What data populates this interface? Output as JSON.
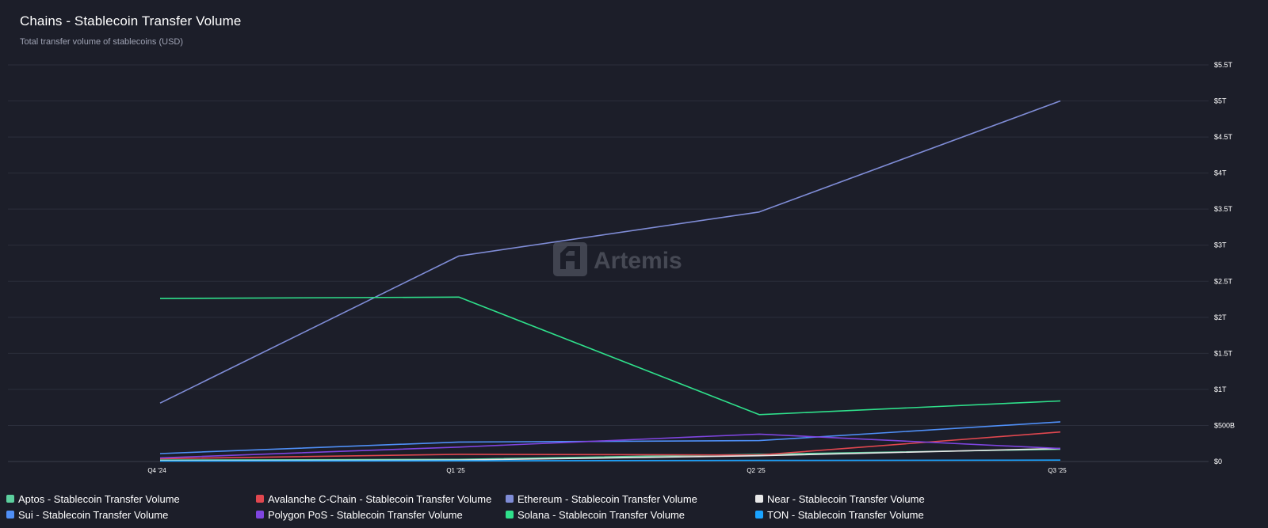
{
  "title": "Chains - Stablecoin Transfer Volume",
  "subtitle": "Total transfer volume of stablecoins (USD)",
  "watermark": "Artemis",
  "colors": {
    "background": "#1c1e29",
    "grid": "#2b2e3b",
    "axis_text": "#ffffff"
  },
  "chart_data": {
    "type": "line",
    "x": [
      "Q4 '24",
      "Q1 '25",
      "Q2 '25",
      "Q3 '25"
    ],
    "ylim": [
      0,
      5.5
    ],
    "y_unit": "trillion USD",
    "y_ticks": [
      {
        "value": 0,
        "label": "$0"
      },
      {
        "value": 0.5,
        "label": "$500B"
      },
      {
        "value": 1,
        "label": "$1T"
      },
      {
        "value": 1.5,
        "label": "$1.5T"
      },
      {
        "value": 2,
        "label": "$2T"
      },
      {
        "value": 2.5,
        "label": "$2.5T"
      },
      {
        "value": 3,
        "label": "$3T"
      },
      {
        "value": 3.5,
        "label": "$3.5T"
      },
      {
        "value": 4,
        "label": "$4T"
      },
      {
        "value": 4.5,
        "label": "$4.5T"
      },
      {
        "value": 5,
        "label": "$5T"
      },
      {
        "value": 5.5,
        "label": "$5.5T"
      }
    ],
    "grid": true,
    "legend_position": "bottom",
    "series": [
      {
        "name": "Aptos - Stablecoin Transfer Volume",
        "color": "#5ccf9e",
        "values": [
          0.02,
          0.03,
          0.1,
          0.17
        ]
      },
      {
        "name": "Avalanche C-Chain - Stablecoin Transfer Volume",
        "color": "#e0474f",
        "values": [
          0.04,
          0.1,
          0.09,
          0.41
        ]
      },
      {
        "name": "Ethereum - Stablecoin Transfer Volume",
        "color": "#7f8cd6",
        "values": [
          0.81,
          2.85,
          3.46,
          5.0
        ]
      },
      {
        "name": "Near - Stablecoin Transfer Volume",
        "color": "#e8e8e8",
        "values": [
          0.01,
          0.02,
          0.08,
          0.18
        ]
      },
      {
        "name": "Sui - Stablecoin Transfer Volume",
        "color": "#4f8ff7",
        "values": [
          0.11,
          0.27,
          0.29,
          0.55
        ]
      },
      {
        "name": "Polygon PoS - Stablecoin Transfer Volume",
        "color": "#7f45e0",
        "values": [
          0.05,
          0.2,
          0.38,
          0.18
        ]
      },
      {
        "name": "Solana - Stablecoin Transfer Volume",
        "color": "#2fe08b",
        "values": [
          2.26,
          2.28,
          0.65,
          0.84
        ]
      },
      {
        "name": "TON - Stablecoin Transfer Volume",
        "color": "#1aa3ff",
        "values": [
          0.005,
          0.01,
          0.015,
          0.02
        ]
      }
    ]
  }
}
